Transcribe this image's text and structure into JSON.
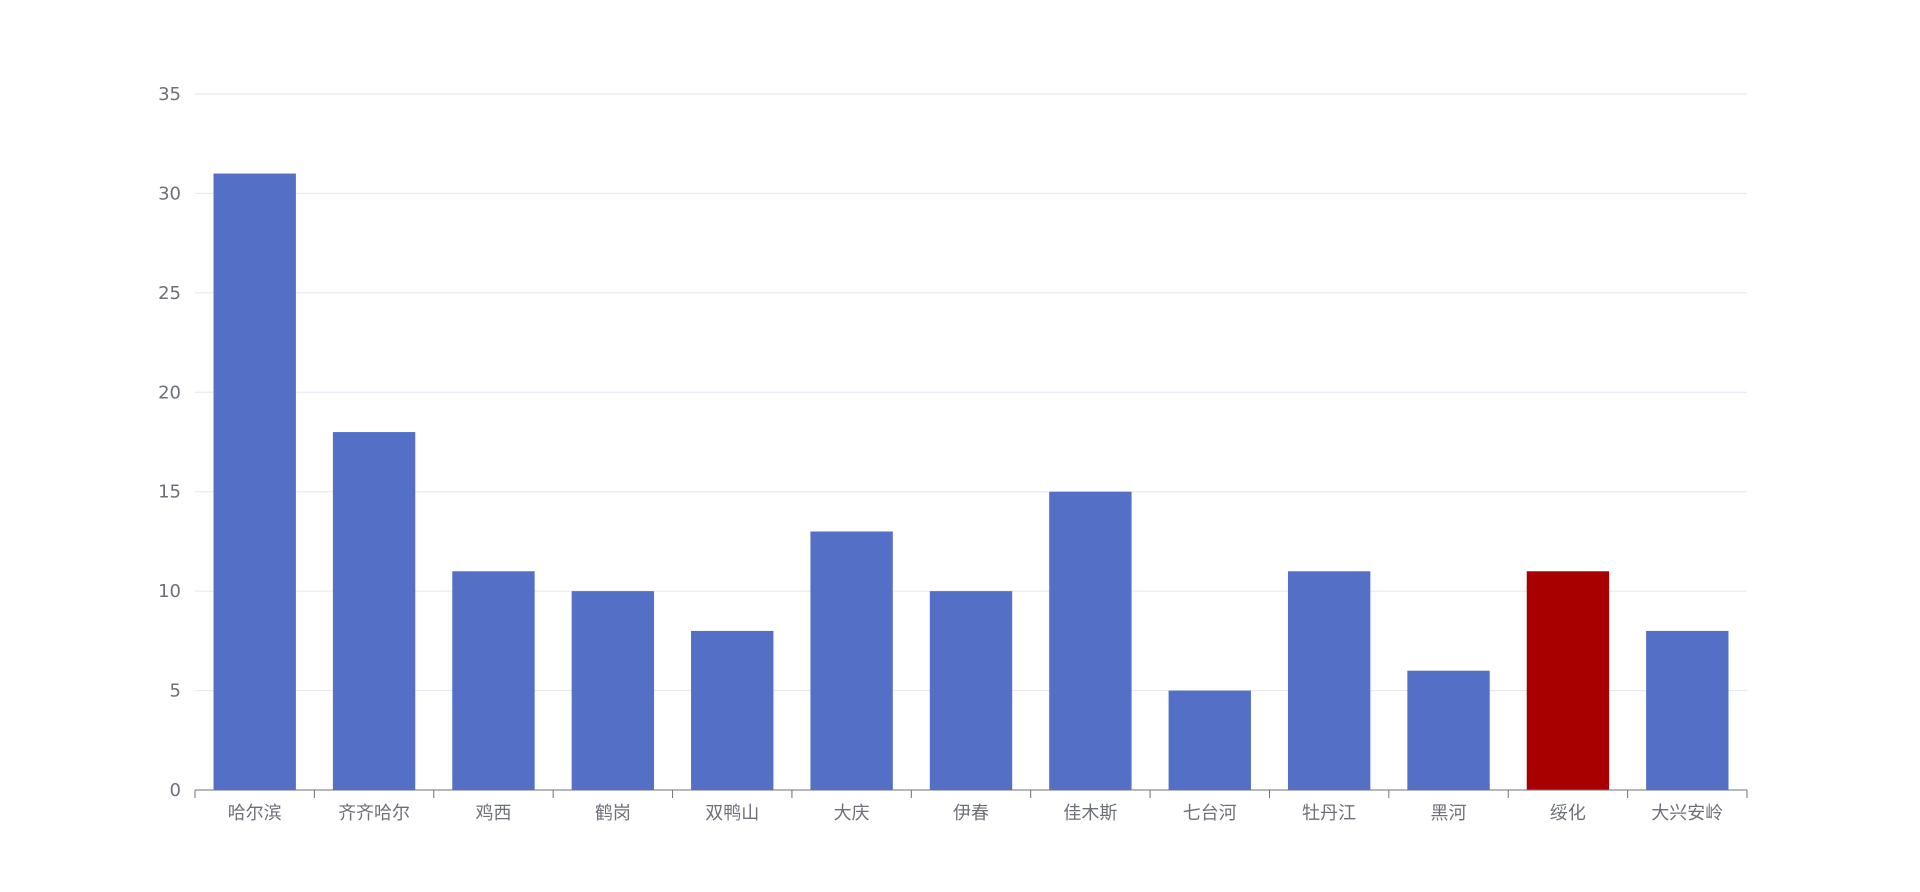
{
  "chart_data": {
    "type": "bar",
    "title": "",
    "xlabel": "",
    "ylabel": "",
    "categories": [
      "哈尔滨",
      "齐齐哈尔",
      "鸡西",
      "鹤岗",
      "双鸭山",
      "大庆",
      "伊春",
      "佳木斯",
      "七台河",
      "牡丹江",
      "黑河",
      "绥化",
      "大兴安岭"
    ],
    "values": [
      31,
      18,
      11,
      10,
      8,
      13,
      10,
      15,
      5,
      11,
      6,
      11,
      8
    ],
    "ylim": [
      0,
      35
    ],
    "yticks": [
      0,
      5,
      10,
      15,
      20,
      25,
      30,
      35
    ],
    "grid": true,
    "colors": {
      "default_bar": "#5470c6",
      "highlight_bar": "#a80000",
      "highlight_category": "绥化"
    }
  }
}
